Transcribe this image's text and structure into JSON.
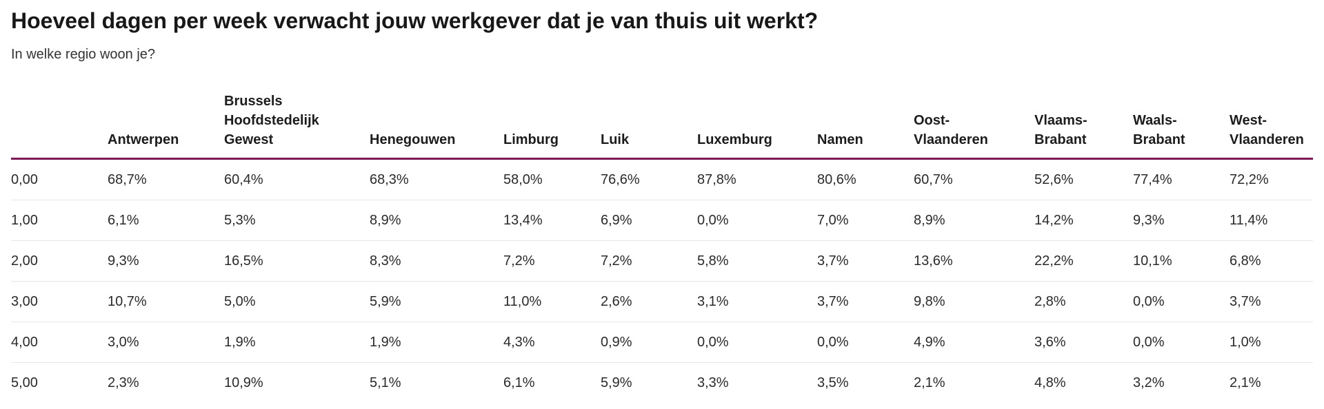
{
  "chart_data": {
    "type": "table",
    "title": "Hoeveel dagen per week verwacht jouw werkgever dat je van thuis uit werkt?",
    "subtitle": "In welke regio woon je?",
    "columns": [
      "",
      "Antwerpen",
      "Brussels\nHoofdstedelijk\nGewest",
      "Henegouwen",
      "Limburg",
      "Luik",
      "Luxemburg",
      "Namen",
      "Oost-\nVlaanderen",
      "Vlaams-\nBrabant",
      "Waals-\nBrabant",
      "West-\nVlaanderen"
    ],
    "rows": [
      [
        "0,00",
        "68,7%",
        "60,4%",
        "68,3%",
        "58,0%",
        "76,6%",
        "87,8%",
        "80,6%",
        "60,7%",
        "52,6%",
        "77,4%",
        "72,2%"
      ],
      [
        "1,00",
        "6,1%",
        "5,3%",
        "8,9%",
        "13,4%",
        "6,9%",
        "0,0%",
        "7,0%",
        "8,9%",
        "14,2%",
        "9,3%",
        "11,4%"
      ],
      [
        "2,00",
        "9,3%",
        "16,5%",
        "8,3%",
        "7,2%",
        "7,2%",
        "5,8%",
        "3,7%",
        "13,6%",
        "22,2%",
        "10,1%",
        "6,8%"
      ],
      [
        "3,00",
        "10,7%",
        "5,0%",
        "5,9%",
        "11,0%",
        "2,6%",
        "3,1%",
        "3,7%",
        "9,8%",
        "2,8%",
        "0,0%",
        "3,7%"
      ],
      [
        "4,00",
        "3,0%",
        "1,9%",
        "1,9%",
        "4,3%",
        "0,9%",
        "0,0%",
        "0,0%",
        "4,9%",
        "3,6%",
        "0,0%",
        "1,0%"
      ],
      [
        "5,00",
        "2,3%",
        "10,9%",
        "5,1%",
        "6,1%",
        "5,9%",
        "3,3%",
        "3,5%",
        "2,1%",
        "4,8%",
        "3,2%",
        "2,1%"
      ]
    ],
    "header_rule_color": "#8e1057"
  }
}
